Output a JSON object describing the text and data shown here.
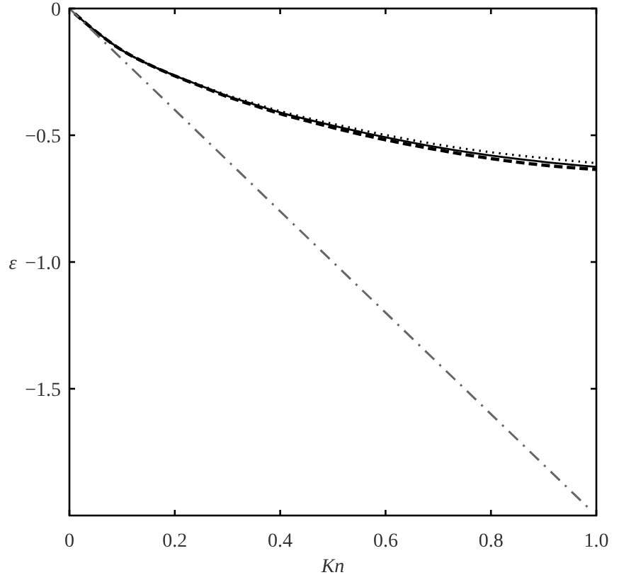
{
  "chart_data": {
    "type": "line",
    "xlabel": "Kn",
    "ylabel": "ε",
    "xlim": [
      0,
      1
    ],
    "ylim": [
      -2,
      0
    ],
    "xticks": [
      0,
      0.2,
      0.4,
      0.6,
      0.8,
      {
        "value": 1,
        "label": "1.0"
      }
    ],
    "yticks": [
      0,
      {
        "value": -0.5,
        "label": "−0.5"
      },
      {
        "value": -1,
        "label": "−1.0"
      },
      {
        "value": -1.5,
        "label": "−1.5"
      }
    ],
    "series": [
      {
        "line_style": "solid",
        "color": "#000000",
        "x": [
          0.01,
          0.05,
          0.1,
          0.15,
          0.2,
          0.25,
          0.3,
          0.35,
          0.4,
          0.45,
          0.5,
          0.6,
          0.7,
          0.8,
          0.9,
          1.0
        ],
        "values": [
          -0.02,
          -0.09,
          -0.165,
          -0.22,
          -0.265,
          -0.305,
          -0.345,
          -0.378,
          -0.41,
          -0.437,
          -0.462,
          -0.508,
          -0.548,
          -0.58,
          -0.605,
          -0.625
        ]
      },
      {
        "line_style": "dashed",
        "color": "#000000",
        "x": [
          0.01,
          0.05,
          0.1,
          0.15,
          0.2,
          0.25,
          0.3,
          0.35,
          0.4,
          0.45,
          0.5,
          0.6,
          0.7,
          0.8,
          0.9,
          1.0
        ],
        "values": [
          -0.02,
          -0.09,
          -0.165,
          -0.22,
          -0.266,
          -0.307,
          -0.348,
          -0.382,
          -0.415,
          -0.443,
          -0.47,
          -0.518,
          -0.558,
          -0.592,
          -0.618,
          -0.635
        ]
      },
      {
        "line_style": "dotted",
        "color": "#000000",
        "x": [
          0.01,
          0.05,
          0.1,
          0.15,
          0.2,
          0.25,
          0.3,
          0.35,
          0.4,
          0.45,
          0.5,
          0.6,
          0.7,
          0.8,
          0.9,
          1.0
        ],
        "values": [
          -0.02,
          -0.09,
          -0.165,
          -0.22,
          -0.264,
          -0.303,
          -0.342,
          -0.374,
          -0.405,
          -0.431,
          -0.455,
          -0.499,
          -0.537,
          -0.567,
          -0.59,
          -0.61
        ]
      },
      {
        "line_style": "dashdot",
        "color": "#666666",
        "x": [
          0,
          0.99
        ],
        "values": [
          0,
          -1.98
        ]
      }
    ]
  }
}
